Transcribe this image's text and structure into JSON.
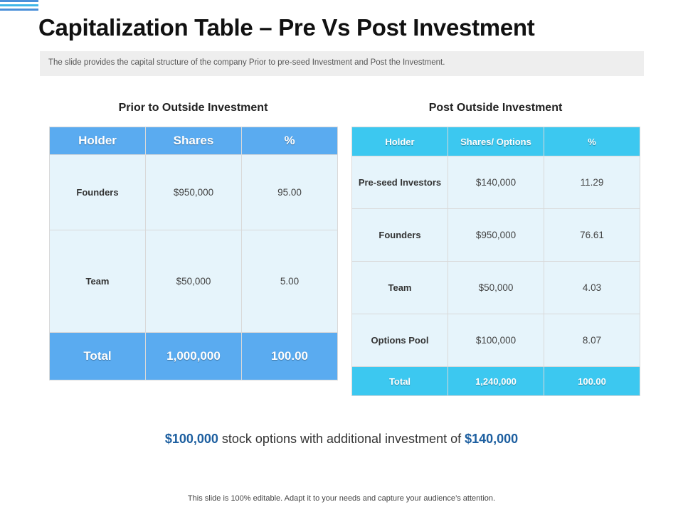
{
  "title": "Capitalization Table – Pre Vs Post Investment",
  "subtitle": "The slide provides the capital structure of the company Prior  to pre-seed  Investment and Post  the Investment.",
  "pre": {
    "title": "Prior to Outside Investment",
    "headers": [
      "Holder",
      "Shares",
      "%"
    ],
    "rows": [
      {
        "holder": "Founders",
        "shares": "$950,000",
        "percent": "95.00"
      },
      {
        "holder": "Team",
        "shares": "$50,000",
        "percent": "5.00"
      }
    ],
    "total": {
      "label": "Total",
      "shares": "1,000,000",
      "percent": "100.00"
    }
  },
  "post": {
    "title": "Post Outside Investment",
    "headers": [
      "Holder",
      "Shares/ Options",
      "%"
    ],
    "rows": [
      {
        "holder": "Pre-seed Investors",
        "shares": "$140,000",
        "percent": "11.29"
      },
      {
        "holder": "Founders",
        "shares": "$950,000",
        "percent": "76.61"
      },
      {
        "holder": "Team",
        "shares": "$50,000",
        "percent": "4.03"
      },
      {
        "holder": "Options Pool",
        "shares": "$100,000",
        "percent": "8.07"
      }
    ],
    "total": {
      "label": "Total",
      "shares": "1,240,000",
      "percent": "100.00"
    }
  },
  "summary": {
    "amount1": "$100,000",
    "middle": " stock options with additional investment of ",
    "amount2": "$140,000"
  },
  "footer": "This slide is 100% editable. Adapt it to your needs and capture your audience’s attention.",
  "colors": {
    "left_header": "#5aabf0",
    "right_header": "#3cc8f0",
    "cell_bg": "#e6f4fb",
    "highlight": "#1d5fa0"
  }
}
